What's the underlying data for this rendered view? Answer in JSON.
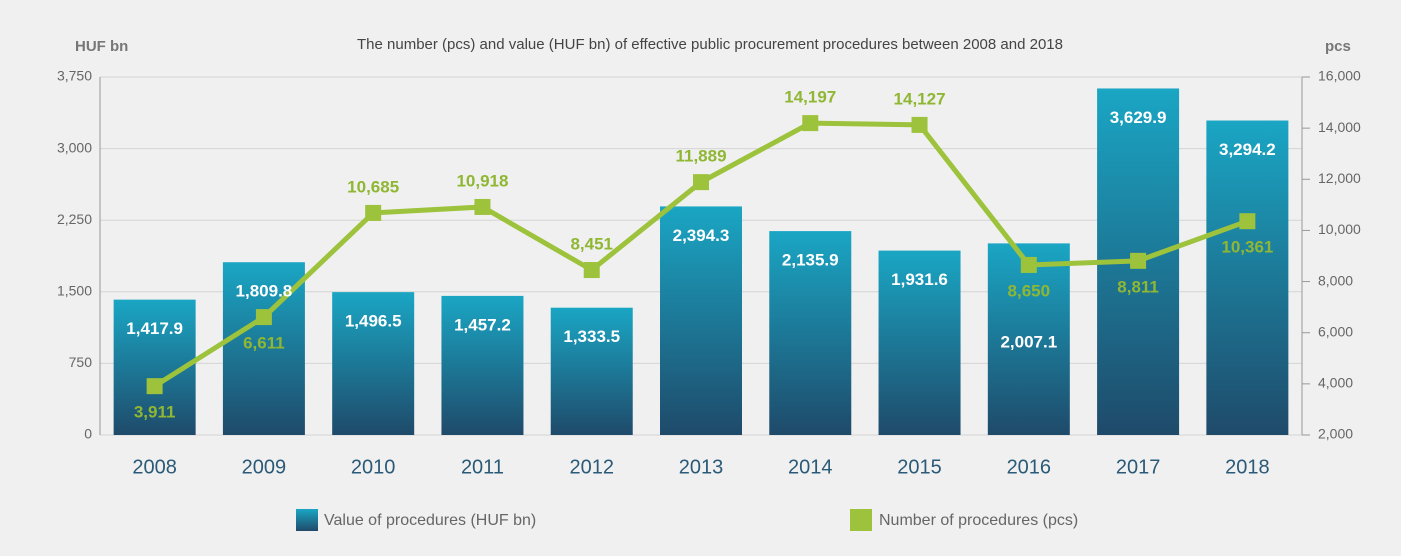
{
  "chart_data": {
    "type": "bar_line",
    "title": "The number (pcs) and value (HUF bn) of effective public procurement procedures between 2008 and 2018",
    "y_label": "HUF bn",
    "y2_label": "pcs",
    "categories": [
      "2008",
      "2009",
      "2010",
      "2011",
      "2012",
      "2013",
      "2014",
      "2015",
      "2016",
      "2017",
      "2018"
    ],
    "series": [
      {
        "name": "Value of procedures (HUF bn)",
        "type": "bar",
        "color": "#1aa6c4",
        "values": [
          1417.9,
          1809.8,
          1496.5,
          1457.2,
          1333.5,
          2394.3,
          2135.9,
          1931.6,
          2007.1,
          3629.9,
          3294.2
        ],
        "value_labels": [
          "1,417.9",
          "1,809.8",
          "1,496.5",
          "1,457.2",
          "1,333.5",
          "2,394.3",
          "2,135.9",
          "1,931.6",
          "2,007.1",
          "3,629.9",
          "3,294.2"
        ]
      },
      {
        "name": "Number of procedures (pcs)",
        "type": "line",
        "axis": "y2",
        "color": "#9dc23b",
        "values": [
          3911,
          6611,
          10685,
          10918,
          8451,
          11889,
          14197,
          14127,
          8650,
          8811,
          10361
        ],
        "value_labels": [
          "3,911",
          "6,611",
          "10,685",
          "10,918",
          "8,451",
          "11,889",
          "14,197",
          "14,127",
          "8,650",
          "8,811",
          "10,361"
        ]
      }
    ],
    "ylim": [
      0,
      3750
    ],
    "yticks": [
      0,
      750,
      {
        "value": 1500,
        "label": "1,500"
      },
      {
        "value": 2250,
        "label": "2,250"
      },
      {
        "value": 3000,
        "label": "3,000"
      },
      {
        "value": 3750,
        "label": "3,750"
      }
    ],
    "y2lim": [
      2000,
      16000
    ],
    "y2ticks": [
      {
        "value": 2000,
        "label": "2,000"
      },
      {
        "value": 4000,
        "label": "4,000"
      },
      {
        "value": 6000,
        "label": "6,000"
      },
      {
        "value": 8000,
        "label": "8,000"
      },
      {
        "value": 10000,
        "label": "10,000"
      },
      {
        "value": 12000,
        "label": "12,000"
      },
      {
        "value": 14000,
        "label": "14,000"
      },
      {
        "value": 16000,
        "label": "16,000"
      }
    ],
    "grid": true
  }
}
